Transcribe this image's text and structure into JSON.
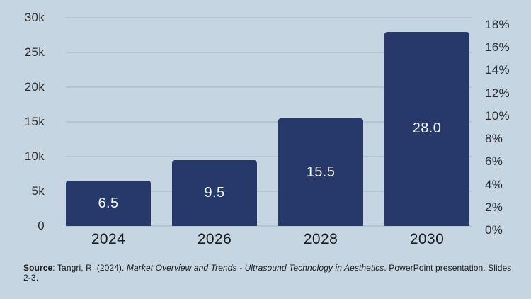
{
  "chart_data": {
    "type": "bar",
    "title": "",
    "categories": [
      "2024",
      "2026",
      "2028",
      "2030"
    ],
    "values": [
      6.5,
      9.5,
      15.5,
      28.0
    ],
    "value_labels": [
      "6.5",
      "9.5",
      "15.5",
      "28.0"
    ],
    "left_axis": {
      "ticks": [
        "0",
        "5k",
        "10k",
        "15k",
        "20k",
        "25k",
        "30k"
      ],
      "tick_values": [
        0,
        5,
        10,
        15,
        20,
        25,
        30
      ],
      "min": 0,
      "max": 30
    },
    "right_axis": {
      "ticks": [
        "0%",
        "2%",
        "4%",
        "6%",
        "8%",
        "10%",
        "12%",
        "14%",
        "16%",
        "18%"
      ],
      "tick_values": [
        0,
        2,
        4,
        6,
        8,
        10,
        12,
        14,
        16,
        18
      ],
      "min": 0,
      "max": 18
    },
    "grid": true,
    "legend": false,
    "colors": {
      "background": "#c5d5e1",
      "bar": "#27386a",
      "bar_label_text": "#f4f7fa",
      "gridline": "#b3c6d2",
      "axis_text": "#2e2e2e",
      "category_text": "#1c1c1c"
    }
  },
  "source": {
    "label": "Source",
    "before_italic": ": Tangri, R. (2024). ",
    "italic_title": "Market Overview and Trends - Ultrasound Technology in Aesthetics",
    "after_italic": ". PowerPoint presentation. Slides 2-3."
  }
}
